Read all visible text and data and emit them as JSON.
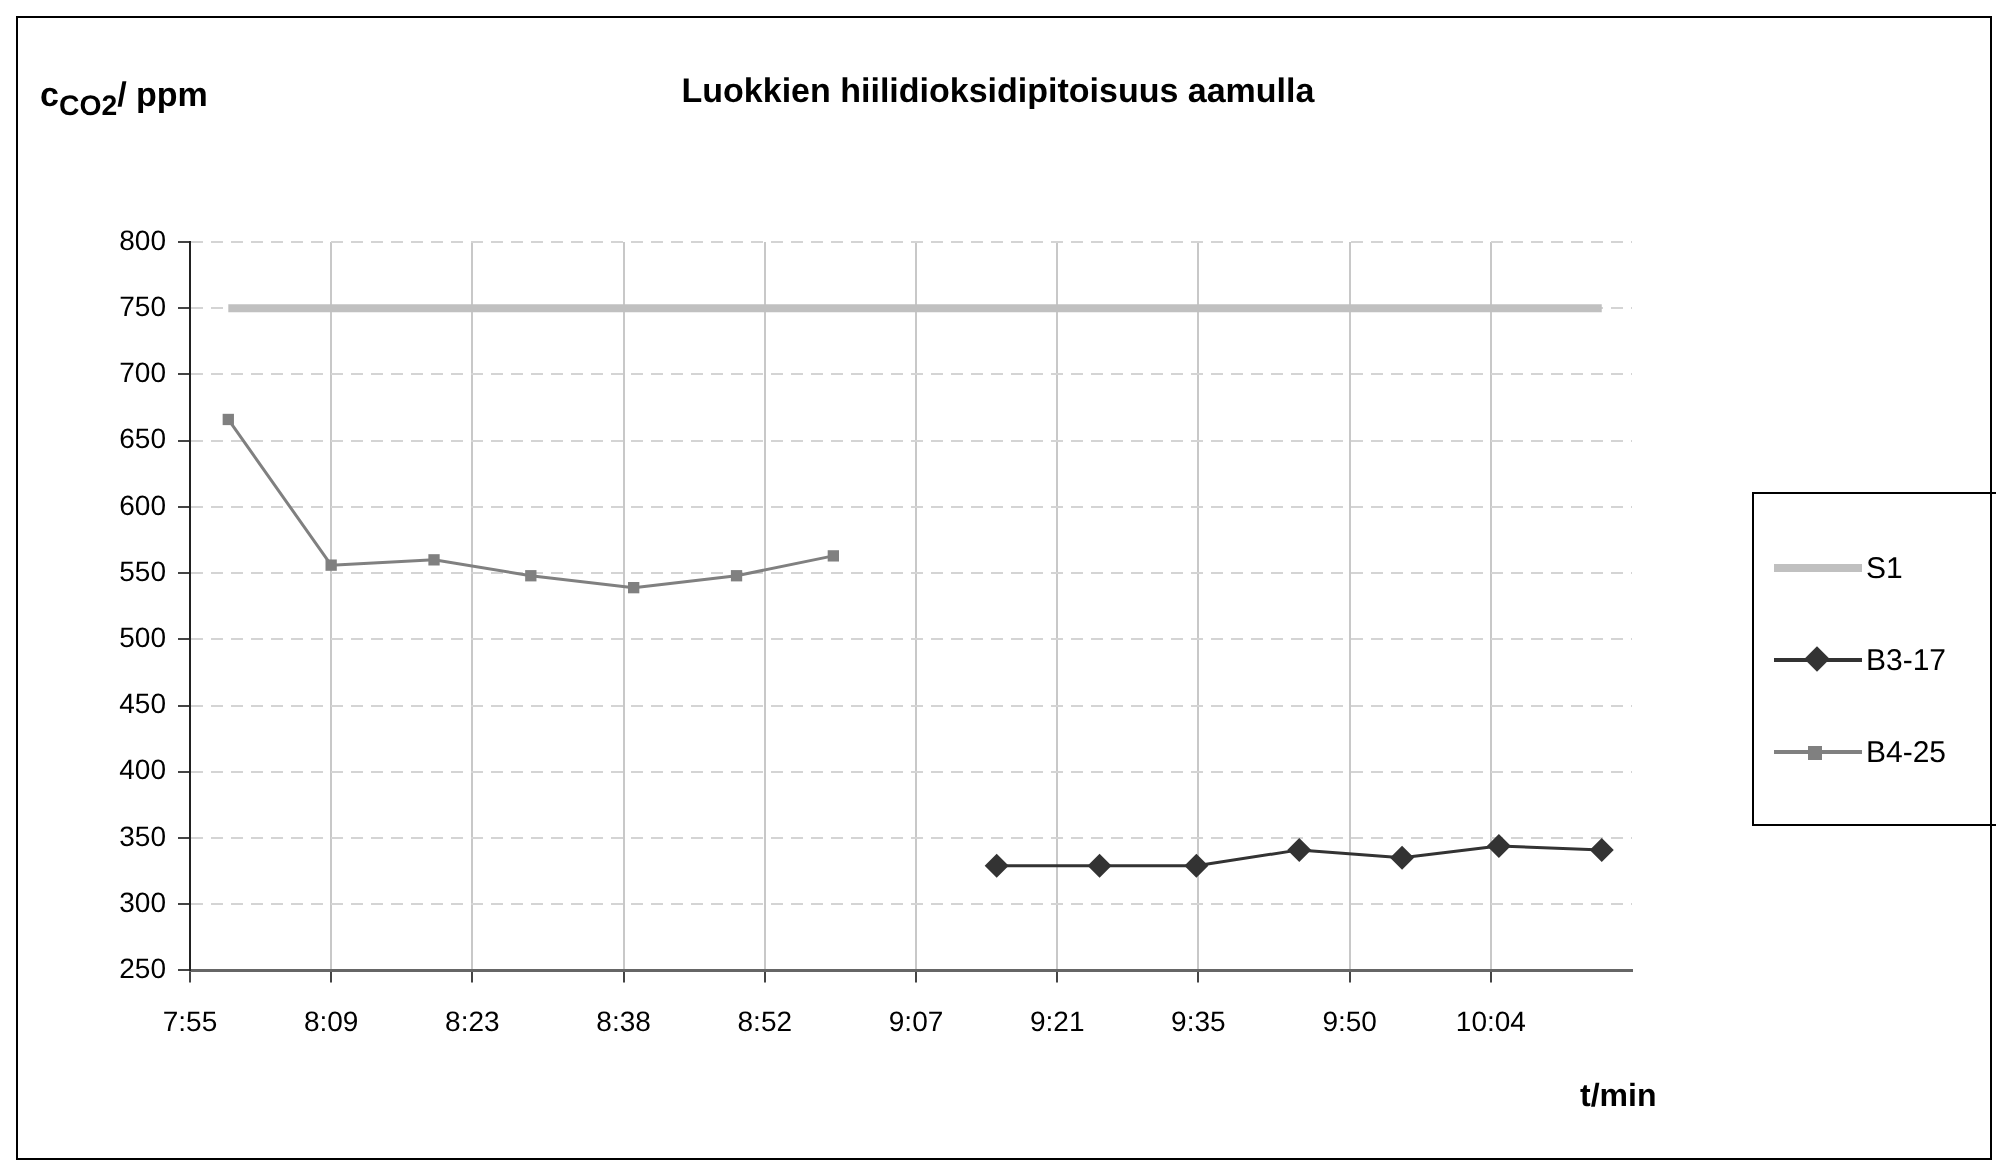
{
  "chart_data": {
    "type": "line",
    "title": "Luokkien hiilidioksidipitoisuus aamulla",
    "ylabel": "c$_{CO2}$/ ppm",
    "xlabel": "t/min",
    "xlim": [
      7.9167,
      10.3
    ],
    "xticks": [
      {
        "value": 7.9167,
        "label": "7:55"
      },
      {
        "value": 8.15,
        "label": "8:09"
      },
      {
        "value": 8.3833,
        "label": "8:23"
      },
      {
        "value": 8.6333,
        "label": "8:38"
      },
      {
        "value": 8.8667,
        "label": "8:52"
      },
      {
        "value": 9.1167,
        "label": "9:07"
      },
      {
        "value": 9.35,
        "label": "9:21"
      },
      {
        "value": 9.5833,
        "label": "9:35"
      },
      {
        "value": 9.8333,
        "label": "9:50"
      },
      {
        "value": 10.0667,
        "label": "10:04"
      }
    ],
    "ylim": [
      250,
      800
    ],
    "yticks": [
      250,
      300,
      350,
      400,
      450,
      500,
      550,
      600,
      650,
      700,
      750,
      800
    ],
    "grid": true,
    "legend": "right",
    "line_style": "solid",
    "series": [
      {
        "name": "S1",
        "color": "#c0c0c0",
        "marker": "none",
        "x": [
          7.98,
          8.15,
          8.32,
          8.48,
          8.65,
          8.82,
          8.98,
          9.25,
          9.42,
          9.58,
          9.75,
          9.92,
          10.08,
          10.25
        ],
        "values": [
          750,
          750,
          750,
          750,
          750,
          750,
          750,
          750,
          750,
          750,
          750,
          750,
          750,
          750
        ]
      },
      {
        "name": "B3-17",
        "color": "#333333",
        "marker": "diamond",
        "x": [
          9.25,
          9.42,
          9.58,
          9.75,
          9.92,
          10.08,
          10.25
        ],
        "values": [
          329,
          329,
          329,
          341,
          335,
          344,
          341
        ]
      },
      {
        "name": "B4-25",
        "color": "#808080",
        "marker": "square",
        "x": [
          7.98,
          8.15,
          8.32,
          8.48,
          8.65,
          8.82,
          8.98
        ],
        "values": [
          666,
          556,
          560,
          548,
          539,
          548,
          563
        ]
      }
    ]
  }
}
